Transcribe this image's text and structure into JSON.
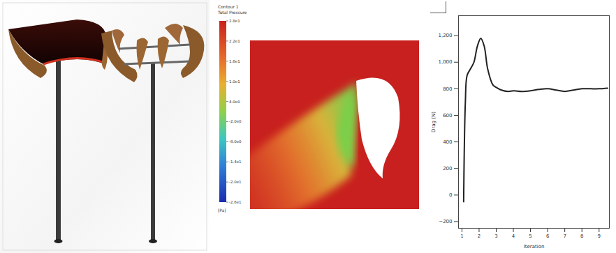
{
  "contour": {
    "title": "Contour 1",
    "variable": "Total Pressure",
    "unit": "[Pa]",
    "colorbar_range": [
      -26,
      28
    ],
    "colorbar_ticks": [
      {
        "value": 28,
        "label": "2.8e1"
      },
      {
        "value": 22,
        "label": "2.2e1"
      },
      {
        "value": 16,
        "label": "1.6e1"
      },
      {
        "value": 10,
        "label": "1.0e1"
      },
      {
        "value": 4,
        "label": "4.0e0"
      },
      {
        "value": -2,
        "label": "-2.0e0"
      },
      {
        "value": -8,
        "label": "-8.0e0"
      },
      {
        "value": -14,
        "label": "-1.4e1"
      },
      {
        "value": -20,
        "label": "-2.0e1"
      },
      {
        "value": -26,
        "label": "-2.6e1"
      }
    ]
  },
  "chart_data": {
    "type": "line",
    "x_label": "Iteration",
    "y_label": "Drag (N)",
    "x": [
      1.1,
      1.2,
      1.3,
      1.5,
      1.7,
      1.9,
      2.1,
      2.3,
      2.5,
      2.8,
      3.0,
      3.3,
      3.7,
      4.0,
      4.5,
      5.0,
      5.5,
      6.0,
      6.5,
      7.0,
      7.5,
      8.0,
      8.5,
      9.0,
      9.5
    ],
    "values": [
      -50,
      700,
      900,
      950,
      1000,
      1120,
      1180,
      1120,
      950,
      830,
      810,
      790,
      780,
      785,
      780,
      785,
      795,
      800,
      790,
      780,
      790,
      800,
      800,
      800,
      805
    ],
    "color": "#222222",
    "xlim": [
      0.8,
      9.6
    ],
    "xticks": [
      1,
      2,
      3,
      4,
      5,
      6,
      7,
      8,
      9
    ],
    "ylim": [
      -250,
      1350
    ],
    "yticks": [
      -200,
      0,
      200,
      400,
      600,
      800,
      1000,
      1200
    ],
    "grid": false
  }
}
